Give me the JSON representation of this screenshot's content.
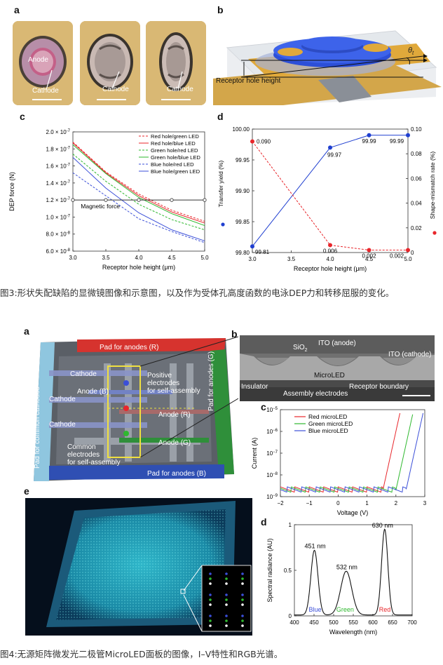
{
  "fig3": {
    "panel_labels": {
      "a": "a",
      "b": "b",
      "c": "c",
      "d": "d"
    },
    "panel_a": {
      "anode": "Anode",
      "cathode": "Cathode"
    },
    "panel_b": {
      "receptor_label": "Receptor hole height",
      "theta": "θ",
      "theta_sub": "t"
    },
    "caption": "图3:形状失配缺陷的显微镜图像和示意图，以及作为受体孔高度函数的电泳DEP力和转移屈服的变化。"
  },
  "fig4": {
    "panel_labels": {
      "a": "a",
      "b": "b",
      "c": "c",
      "d": "d",
      "e": "e"
    },
    "panel_a": {
      "pad_anodes_r": "Pad for anodes (R)",
      "pad_anodes_g": "Pad for anodes (G)",
      "pad_anodes_b": "Pad for anodes (B)",
      "pad_cathodes": "Pad for common cathodes",
      "cathode1": "Cathode",
      "cathode2": "Cathode",
      "cathode3": "Cathode",
      "anode_b": "Anode (B)",
      "anode_r": "Anode (R)",
      "anode_g": "Anode (G)",
      "positive1": "Positive",
      "positive2": "electrodes",
      "positive3": "for self-assembly",
      "common1": "Common",
      "common2": "electrodes",
      "common3": "for self-assembly"
    },
    "panel_b": {
      "ito_anode": "ITO (anode)",
      "ito_cathode": "ITO (cathode)",
      "sio2": "SiO",
      "sio2_sub": "2",
      "microled": "MicroLED",
      "insulator": "Insulator",
      "assembly": "Assembly electrodes",
      "receptor": "Receptor boundary"
    },
    "caption": "图4:无源矩阵微发光二极管MicroLED面板的图像，I–V特性和RGB光谱。"
  },
  "colors": {
    "red": "#e8262b",
    "green": "#2eb82e",
    "blue": "#3b4fd8",
    "pad_red": "#d6332e",
    "pad_green": "#2f8f3a",
    "pad_blue": "#2f4fb3",
    "pad_cyan": "#8fc6df"
  },
  "chart_data": [
    {
      "id": "fig3c",
      "type": "line",
      "xlabel": "Receptor hole height (μm)",
      "ylabel": "DEP force (N)",
      "xlim": [
        3.0,
        5.0
      ],
      "ylim": [
        6e-08,
        2e-07
      ],
      "x_ticks": [
        "3.0",
        "3.5",
        "4.0",
        "4.5",
        "5.0"
      ],
      "y_ticks": [
        {
          "v": 6e-08,
          "m": "6.0",
          "e": "-8"
        },
        {
          "v": 8e-08,
          "m": "8.0",
          "e": "-8"
        },
        {
          "v": 1e-07,
          "m": "1.0",
          "e": "-7"
        },
        {
          "v": 1.2e-07,
          "m": "1.2",
          "e": "-7"
        },
        {
          "v": 1.4e-07,
          "m": "1.4",
          "e": "-7"
        },
        {
          "v": 1.6e-07,
          "m": "1.6",
          "e": "-7"
        },
        {
          "v": 1.8e-07,
          "m": "1.8",
          "e": "-7"
        },
        {
          "v": 2e-07,
          "m": "2.0",
          "e": "-7"
        }
      ],
      "tick_prefix": "× 10",
      "annotation": "Magnetic force",
      "legend_position": "top-right",
      "x": [
        3.0,
        3.5,
        4.0,
        4.5,
        5.0
      ],
      "series": [
        {
          "name": "Red hole/green LED",
          "color": "#e8262b",
          "dash": true,
          "values": [
            1.88e-07,
            1.53e-07,
            1.27e-07,
            1.08e-07,
            9.5e-08
          ]
        },
        {
          "name": "Red hole/blue LED",
          "color": "#e8262b",
          "dash": false,
          "values": [
            1.87e-07,
            1.52e-07,
            1.25e-07,
            1.06e-07,
            9.3e-08
          ]
        },
        {
          "name": "Green hole/red LED",
          "color": "#2eb82e",
          "dash": true,
          "values": [
            1.74e-07,
            1.42e-07,
            1.15e-07,
            9.7e-08,
            8.5e-08
          ]
        },
        {
          "name": "Green hole/blue LED",
          "color": "#2eb82e",
          "dash": false,
          "values": [
            1.85e-07,
            1.51e-07,
            1.23e-07,
            1.04e-07,
            9e-08
          ]
        },
        {
          "name": "Blue hole/red LED",
          "color": "#3b4fd8",
          "dash": true,
          "values": [
            1.52e-07,
            1.25e-07,
            9.8e-08,
            8.3e-08,
            7e-08
          ]
        },
        {
          "name": "Blue hole/green LED",
          "color": "#3b4fd8",
          "dash": false,
          "values": [
            1.7e-07,
            1.34e-07,
            1.05e-07,
            8.5e-08,
            7.2e-08
          ]
        },
        {
          "name": "Magnetic force",
          "color": "#333333",
          "dash": false,
          "marker": "circle",
          "values": [
            1.2e-07,
            1.2e-07,
            1.2e-07,
            1.2e-07,
            1.2e-07
          ]
        }
      ]
    },
    {
      "id": "fig3d",
      "type": "line",
      "xlabel": "Receptor hole height (μm)",
      "ylabel": "Transfer yield (%)",
      "y2label": "Shape-mismatch rate (%)",
      "xlim": [
        3.0,
        5.0
      ],
      "ylim": [
        99.8,
        100.0
      ],
      "y2lim": [
        0,
        0.1
      ],
      "x_ticks": [
        "3.0",
        "3.5",
        "4.0",
        "4.5",
        "5.0"
      ],
      "y_ticks": [
        "99.80",
        "99.85",
        "99.90",
        "99.95",
        "100.00"
      ],
      "y2_ticks": [
        "0",
        "0.02",
        "0.04",
        "0.06",
        "0.08",
        "0.10"
      ],
      "series": [
        {
          "name": "Transfer yield",
          "axis": "left",
          "color": "#1f3fd0",
          "x": [
            3.0,
            4.0,
            4.5,
            5.0
          ],
          "values": [
            99.81,
            99.97,
            99.99,
            99.99
          ],
          "labels": [
            "99.81",
            "99.97",
            "99.99",
            "99.99"
          ]
        },
        {
          "name": "Shape-mismatch rate",
          "axis": "right",
          "color": "#e8262b",
          "dash": true,
          "x": [
            3.0,
            4.0,
            4.5,
            5.0
          ],
          "values": [
            0.09,
            0.006,
            0.002,
            0.002
          ],
          "labels": [
            "0.090",
            "0.006",
            "0.002",
            "0.002"
          ]
        }
      ]
    },
    {
      "id": "fig4c",
      "type": "line",
      "xlabel": "Voltage (V)",
      "ylabel": "Current (A)",
      "xlim": [
        -2,
        3
      ],
      "ylim_exp": [
        -9,
        -5
      ],
      "x_ticks": [
        "−2",
        "−1",
        "0",
        "1",
        "2",
        "3"
      ],
      "y_ticks": [
        {
          "m": "10",
          "e": "−5",
          "v": -5
        },
        {
          "m": "10",
          "e": "−6",
          "v": -6
        },
        {
          "m": "10",
          "e": "−7",
          "v": -7
        },
        {
          "m": "10",
          "e": "−8",
          "v": -8
        },
        {
          "m": "10",
          "e": "−9",
          "v": -9
        }
      ],
      "legend_position": "top-left",
      "series": [
        {
          "name": "Red microLED",
          "color": "#e8262b",
          "turn_on": 1.55,
          "steep": 6.0
        },
        {
          "name": "Green microLED",
          "color": "#2eb82e",
          "turn_on": 2.0,
          "steep": 6.0
        },
        {
          "name": "Blue microLED",
          "color": "#3b4fd8",
          "turn_on": 2.35,
          "steep": 6.0
        }
      ]
    },
    {
      "id": "fig4d",
      "type": "line",
      "xlabel": "Wavelength (nm)",
      "ylabel": "Spectral radiance (AU)",
      "xlim": [
        400,
        700
      ],
      "ylim": [
        0,
        1
      ],
      "x_ticks": [
        "400",
        "450",
        "500",
        "550",
        "600",
        "650",
        "700"
      ],
      "y_ticks": [
        "0",
        "0.5",
        "1"
      ],
      "peaks": [
        {
          "label": "451 nm",
          "center": 451,
          "height": 0.71,
          "width": 9,
          "name": "Blue",
          "color": "#3b4fd8"
        },
        {
          "label": "532 nm",
          "center": 532,
          "height": 0.48,
          "width": 14,
          "name": "Green",
          "color": "#2eb82e"
        },
        {
          "label": "630 nm",
          "center": 630,
          "height": 0.94,
          "width": 8,
          "name": "Red",
          "color": "#e8262b"
        }
      ]
    }
  ]
}
